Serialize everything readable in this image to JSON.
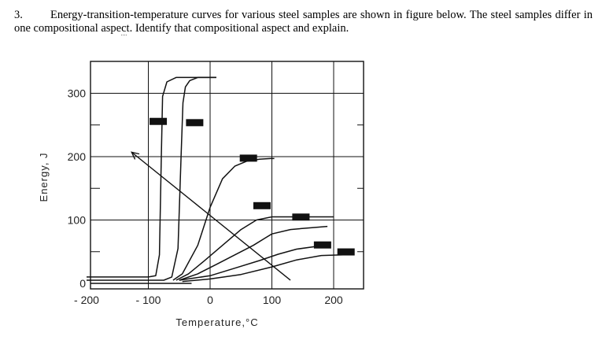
{
  "question": {
    "number": "3.",
    "text_part1": "Energy-transition-temperature curves for various steel samples are shown in figure below. The steel samples differ in one compositional aspe",
    "text_dotted": "c",
    "text_part2": "t. Identify that compositional aspect and explain."
  },
  "chart_data": {
    "type": "line",
    "title": "",
    "xlabel": "Temperature,°C",
    "ylabel": "Energy, J",
    "xlim": [
      -200,
      240
    ],
    "ylim": [
      0,
      340
    ],
    "xticks": [
      -200,
      -100,
      0,
      100,
      200
    ],
    "xtick_labels": [
      "- 200",
      "- 100",
      "0",
      "100",
      "200"
    ],
    "yticks": [
      0,
      100,
      200,
      300
    ],
    "ytick_labels": [
      "0",
      "100",
      "200",
      "300"
    ],
    "grid": true,
    "series": [
      {
        "x": [
          -200,
          -150,
          -100,
          -88,
          -82,
          -79,
          -77,
          -70,
          -55,
          -35,
          10
        ],
        "y": [
          10,
          10,
          10,
          12,
          45,
          200,
          295,
          318,
          325,
          325,
          325
        ]
      },
      {
        "x": [
          -200,
          -100,
          -75,
          -62,
          -52,
          -47,
          -44,
          -40,
          -33,
          -20,
          10
        ],
        "y": [
          5,
          5,
          5,
          10,
          55,
          200,
          285,
          310,
          320,
          325,
          325
        ]
      },
      {
        "x": [
          -60,
          -45,
          -20,
          0,
          20,
          40,
          60,
          80,
          98,
          104
        ],
        "y": [
          5,
          15,
          60,
          120,
          165,
          185,
          193,
          196,
          197,
          197
        ]
      },
      {
        "x": [
          -55,
          -35,
          -10,
          20,
          50,
          75,
          90,
          100,
          130,
          200
        ],
        "y": [
          5,
          15,
          35,
          60,
          85,
          100,
          103,
          105,
          105,
          105
        ]
      },
      {
        "x": [
          -50,
          -20,
          10,
          40,
          70,
          90,
          100,
          130,
          165,
          190
        ],
        "y": [
          5,
          15,
          30,
          45,
          60,
          72,
          78,
          85,
          88,
          90
        ]
      },
      {
        "x": [
          -50,
          0,
          40,
          80,
          110,
          140,
          170,
          195
        ],
        "y": [
          5,
          12,
          24,
          36,
          46,
          54,
          58,
          60
        ]
      },
      {
        "x": [
          -45,
          0,
          50,
          100,
          140,
          180,
          215
        ],
        "y": [
          3,
          7,
          14,
          26,
          37,
          44,
          45
        ]
      }
    ],
    "annotation_arrow": {
      "from": [
        130,
        5
      ],
      "to": [
        -127,
        207
      ]
    },
    "label_markers": [
      {
        "x": -84,
        "y": 255
      },
      {
        "x": -25,
        "y": 253
      },
      {
        "x": 62,
        "y": 197
      },
      {
        "x": 84,
        "y": 122
      },
      {
        "x": 147,
        "y": 104
      },
      {
        "x": 182,
        "y": 60
      },
      {
        "x": 220,
        "y": 49
      }
    ]
  }
}
